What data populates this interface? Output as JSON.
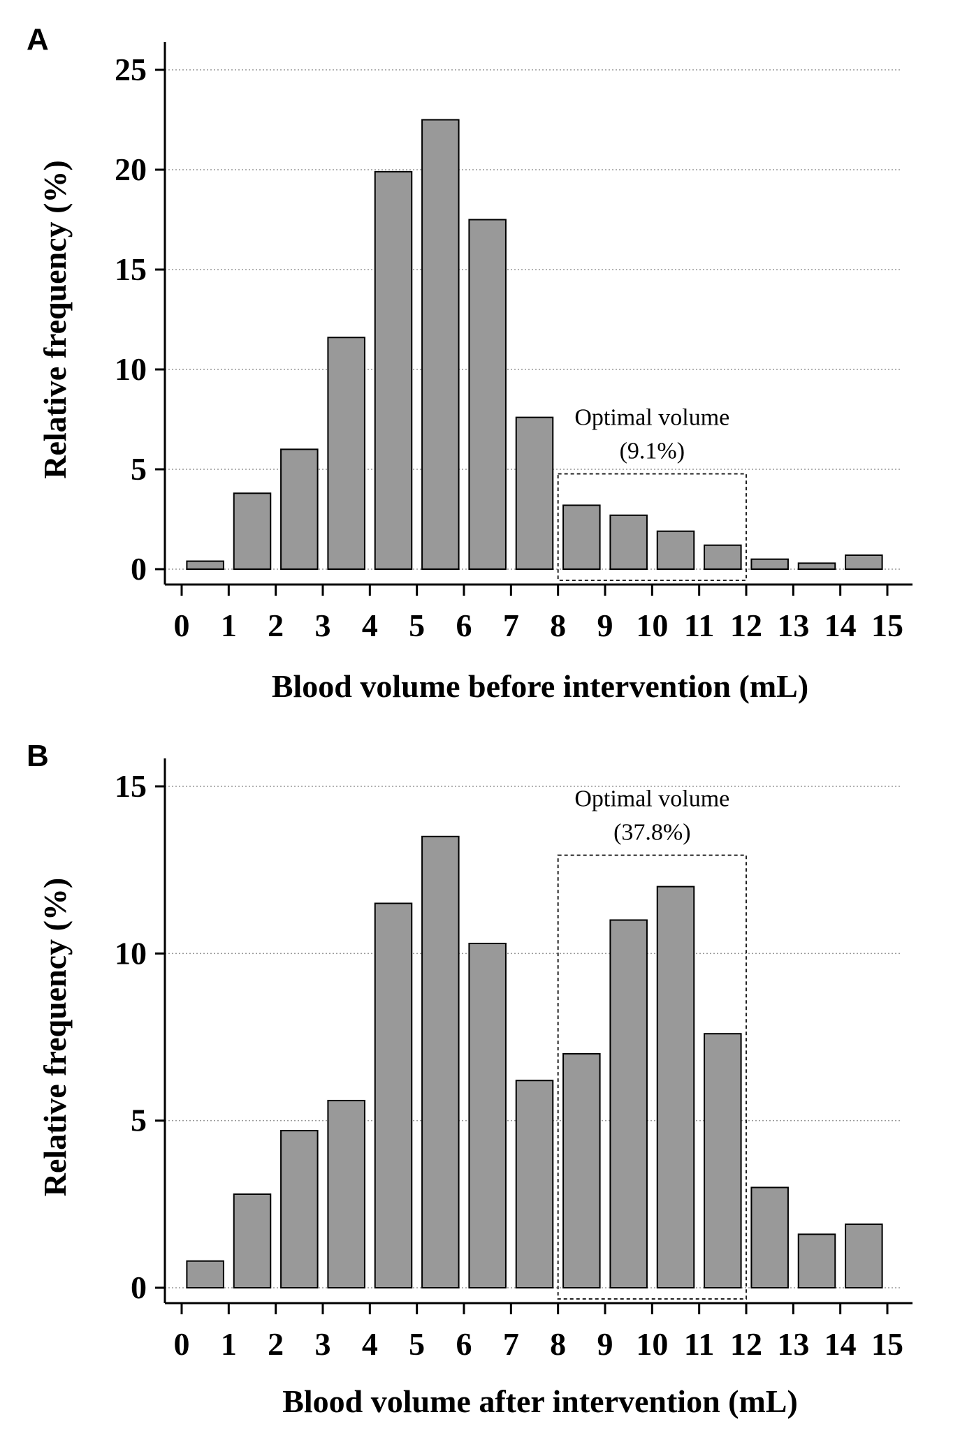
{
  "chart_data": [
    {
      "type": "bar",
      "panel": "A",
      "x": [
        0.5,
        1.5,
        2.5,
        3.5,
        4.5,
        5.5,
        6.5,
        7.5,
        8.5,
        9.5,
        10.5,
        11.5,
        12.5,
        13.5,
        14.5
      ],
      "values": [
        0.4,
        3.8,
        6.0,
        11.6,
        19.9,
        22.5,
        17.5,
        7.6,
        3.2,
        2.7,
        1.9,
        1.2,
        0.5,
        0.3,
        0.7
      ],
      "xlabel": "Blood volume before intervention (mL)",
      "ylabel": "Relative frequency (%)",
      "xlim": [
        0,
        15
      ],
      "ylim": [
        0,
        25
      ],
      "xticks": [
        "0",
        "1",
        "2",
        "3",
        "4",
        "5",
        "6",
        "7",
        "8",
        "9",
        "10",
        "11",
        "12",
        "13",
        "14",
        "15"
      ],
      "yticks": [
        "0",
        "5",
        "10",
        "15",
        "20",
        "25"
      ],
      "grid": "horizontal-dotted",
      "annotation": {
        "line1": "Optimal volume",
        "line2": "(9.1%)",
        "range": [
          8,
          12
        ]
      }
    },
    {
      "type": "bar",
      "panel": "B",
      "x": [
        0.5,
        1.5,
        2.5,
        3.5,
        4.5,
        5.5,
        6.5,
        7.5,
        8.5,
        9.5,
        10.5,
        11.5,
        12.5,
        13.5,
        14.5
      ],
      "values": [
        0.8,
        2.8,
        4.7,
        5.6,
        11.5,
        13.5,
        10.3,
        6.2,
        7.0,
        11.0,
        12.0,
        7.6,
        3.0,
        1.6,
        1.9
      ],
      "xlabel": "Blood volume after intervention (mL)",
      "ylabel": "Relative frequency (%)",
      "xlim": [
        0,
        15
      ],
      "ylim": [
        0,
        15
      ],
      "xticks": [
        "0",
        "1",
        "2",
        "3",
        "4",
        "5",
        "6",
        "7",
        "8",
        "9",
        "10",
        "11",
        "12",
        "13",
        "14",
        "15"
      ],
      "yticks": [
        "0",
        "5",
        "10",
        "15"
      ],
      "grid": "horizontal-dotted",
      "annotation": {
        "line1": "Optimal volume",
        "line2": "(37.8%)",
        "range": [
          8,
          12
        ]
      }
    }
  ],
  "colors": {
    "bar_fill": "#999999",
    "bar_stroke": "#000000",
    "grid": "#999999"
  }
}
